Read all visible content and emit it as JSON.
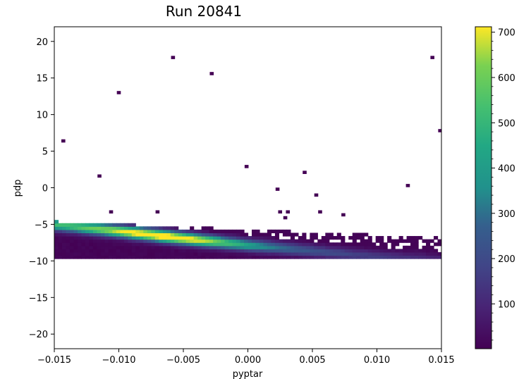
{
  "chart_data": {
    "type": "heatmap",
    "title": "Run 20841",
    "xlabel": "pyptar",
    "ylabel": "pdp",
    "xlim": [
      -0.015,
      0.015
    ],
    "ylim": [
      -22,
      22
    ],
    "x_ticks": [
      -0.015,
      -0.01,
      -0.005,
      0.0,
      0.005,
      0.01,
      0.015
    ],
    "x_tick_labels": [
      "−0.015",
      "−0.010",
      "−0.005",
      "0.000",
      "0.005",
      "0.010",
      "0.015"
    ],
    "y_ticks": [
      -20,
      -15,
      -10,
      -5,
      0,
      5,
      10,
      15,
      20
    ],
    "y_tick_labels": [
      "−20",
      "−15",
      "−10",
      "−5",
      "0",
      "5",
      "10",
      "15",
      "20"
    ],
    "colorbar": {
      "colormap": "viridis",
      "range": [
        1,
        712
      ],
      "ticks": [
        100,
        200,
        300,
        400,
        500,
        600,
        700
      ],
      "tick_labels": [
        "100",
        "200",
        "300",
        "400",
        "500",
        "600",
        "700"
      ]
    },
    "band": {
      "description": "dense ridge of counts",
      "ridge_points": [
        [
          -0.015,
          -5.0
        ],
        [
          -0.01,
          -5.9
        ],
        [
          -0.005,
          -6.9
        ],
        [
          0.0,
          -7.8
        ],
        [
          0.005,
          -8.6
        ],
        [
          0.01,
          -9.4
        ],
        [
          0.015,
          -9.9
        ]
      ],
      "y_lower_cut": -10,
      "peak_count": 712,
      "peak_at": [
        -0.006,
        -6.7
      ]
    },
    "outlier_points": [
      [
        -0.0143,
        6.4
      ],
      [
        -0.0115,
        1.6
      ],
      [
        -0.01,
        13.0
      ],
      [
        -0.0058,
        17.8
      ],
      [
        -0.0028,
        15.6
      ],
      [
        -0.0001,
        2.9
      ],
      [
        0.0023,
        -0.2
      ],
      [
        0.0044,
        2.1
      ],
      [
        0.0053,
        -1.0
      ],
      [
        0.0124,
        0.3
      ],
      [
        0.0143,
        17.8
      ],
      [
        0.0149,
        7.8
      ],
      [
        -0.0106,
        -3.3
      ],
      [
        -0.007,
        -3.3
      ],
      [
        0.0025,
        -3.3
      ],
      [
        0.0031,
        -3.3
      ],
      [
        0.0056,
        -3.3
      ],
      [
        0.0074,
        -3.7
      ],
      [
        0.0029,
        -4.1
      ]
    ],
    "grid": false
  }
}
